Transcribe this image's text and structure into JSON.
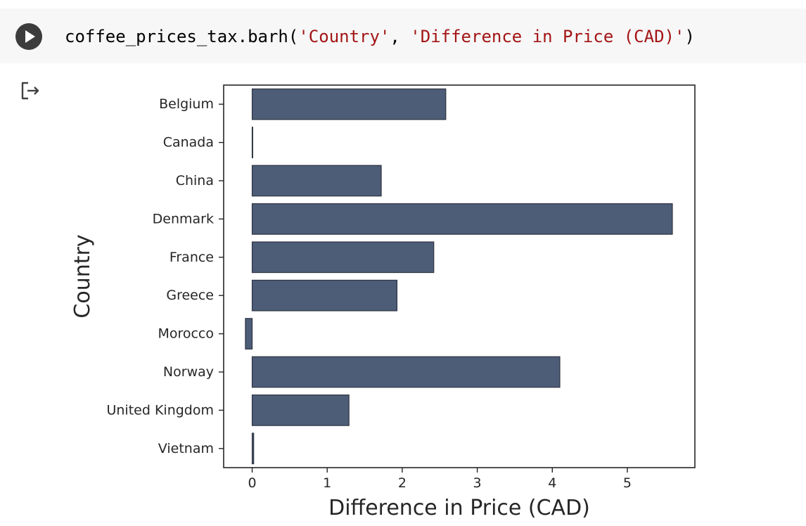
{
  "code_cell": {
    "run_icon": "play-icon",
    "code": {
      "prefix": "coffee_prices_tax.barh(",
      "arg1": "'Country'",
      "sep": ", ",
      "arg2": "'Difference in Price (CAD)'",
      "suffix": ")"
    }
  },
  "output": {
    "icon": "output-redirect-icon"
  },
  "chart_data": {
    "type": "bar",
    "orientation": "horizontal",
    "categories": [
      "Belgium",
      "Canada",
      "China",
      "Denmark",
      "France",
      "Greece",
      "Morocco",
      "Norway",
      "United Kingdom",
      "Vietnam"
    ],
    "values": [
      2.58,
      0.0,
      1.72,
      5.6,
      2.42,
      1.93,
      -0.09,
      4.1,
      1.29,
      0.02
    ],
    "xlabel": "Difference in Price (CAD)",
    "ylabel": "Country",
    "xlim": [
      -0.38,
      5.9
    ],
    "xticks": [
      0,
      1,
      2,
      3,
      4,
      5
    ],
    "grid": false,
    "bar_color": "#4d5d78",
    "bar_edge_color": "#2e3440"
  }
}
